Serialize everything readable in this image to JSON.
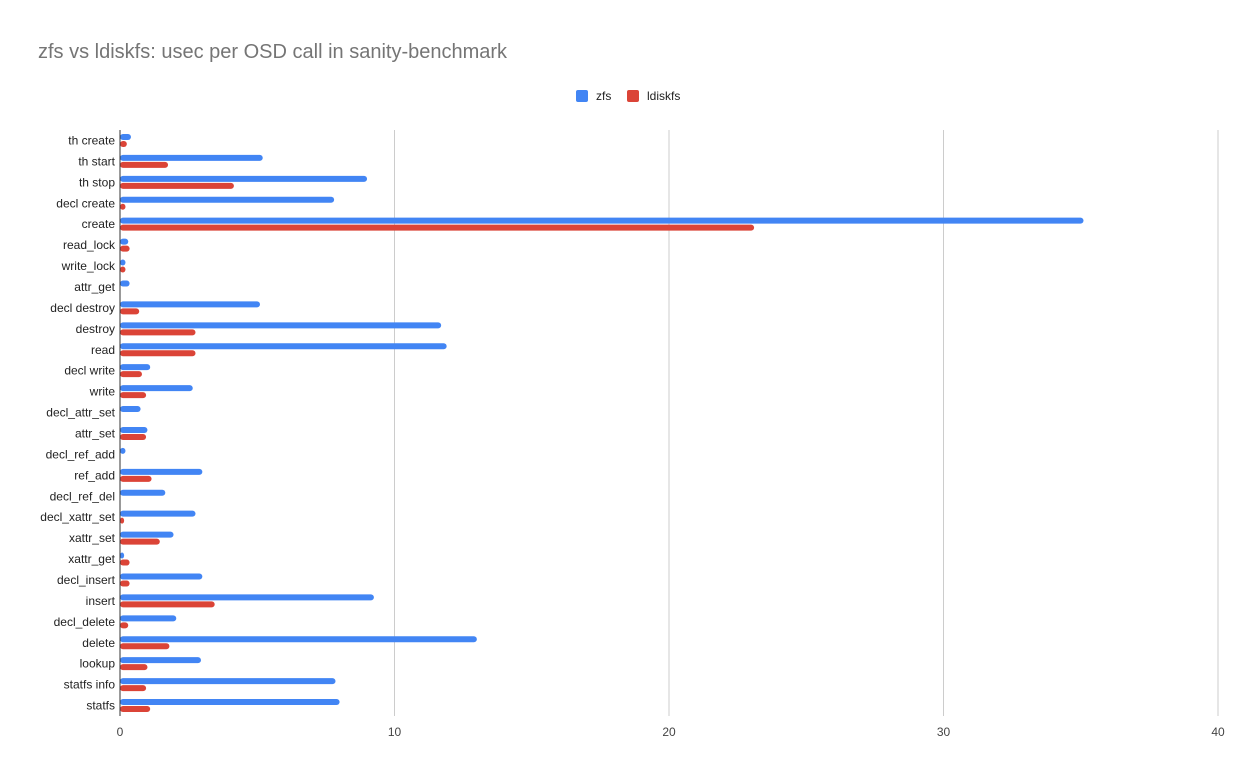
{
  "chart_data": {
    "type": "bar",
    "orientation": "horizontal",
    "title": "zfs vs ldiskfs: usec per OSD call in sanity-benchmark",
    "xlabel": "",
    "ylabel": "",
    "xlim": [
      0,
      40
    ],
    "x_ticks": [
      0,
      10,
      20,
      30,
      40
    ],
    "grid": true,
    "legend_position": "top-center",
    "categories": [
      "th create",
      "th start",
      "th stop",
      "decl create",
      "create",
      "read_lock",
      "write_lock",
      "attr_get",
      "decl destroy",
      "destroy",
      "read",
      "decl write",
      "write",
      "decl_attr_set",
      "attr_set",
      "decl_ref_add",
      "ref_add",
      "decl_ref_del",
      "decl_xattr_set",
      "xattr_set",
      "xattr_get",
      "decl_insert",
      "insert",
      "decl_delete",
      "delete",
      "lookup",
      "statfs info",
      "statfs"
    ],
    "series": [
      {
        "name": "zfs",
        "color": "#4285f4",
        "values": [
          0.4,
          5.2,
          9.0,
          7.8,
          35.1,
          0.3,
          0.2,
          0.35,
          5.1,
          11.7,
          11.9,
          1.1,
          2.65,
          0.75,
          1.0,
          0.2,
          3.0,
          1.65,
          2.75,
          1.95,
          0.15,
          3.0,
          9.25,
          2.05,
          13.0,
          2.95,
          7.85,
          8.0
        ]
      },
      {
        "name": "ldiskfs",
        "color": "#db4437",
        "values": [
          0.25,
          1.75,
          4.15,
          0.2,
          23.1,
          0.35,
          0.2,
          0.0,
          0.7,
          2.75,
          2.75,
          0.8,
          0.95,
          0.0,
          0.95,
          0.0,
          1.15,
          0.0,
          0.15,
          1.45,
          0.35,
          0.35,
          3.45,
          0.3,
          1.8,
          1.0,
          0.95,
          1.1
        ]
      }
    ]
  }
}
